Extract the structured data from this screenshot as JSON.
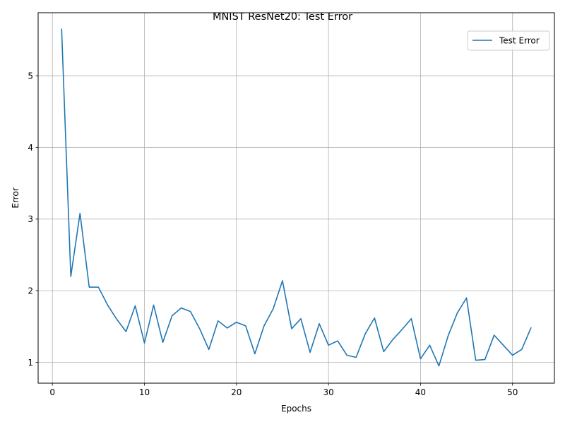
{
  "chart_data": {
    "type": "line",
    "title": "MNIST ResNet20: Test Error",
    "xlabel": "Epochs",
    "ylabel": "Error",
    "xlim": [
      -1.55,
      54.55
    ],
    "ylim": [
      0.71,
      5.88
    ],
    "xticks": [
      0,
      10,
      20,
      30,
      40,
      50
    ],
    "yticks": [
      1,
      2,
      3,
      4,
      5
    ],
    "grid": true,
    "legend_position": "top-right",
    "series": [
      {
        "name": "Test Error",
        "color": "#1f77b4",
        "x": [
          1,
          2,
          3,
          4,
          5,
          6,
          7,
          8,
          9,
          10,
          11,
          12,
          13,
          14,
          15,
          16,
          17,
          18,
          19,
          20,
          21,
          22,
          23,
          24,
          25,
          26,
          27,
          28,
          29,
          30,
          31,
          32,
          33,
          34,
          35,
          36,
          37,
          38,
          39,
          40,
          41,
          42,
          43,
          44,
          45,
          46,
          47,
          48,
          49,
          50,
          51,
          52
        ],
        "y": [
          5.65,
          2.2,
          3.08,
          2.05,
          2.05,
          1.8,
          1.6,
          1.43,
          1.79,
          1.27,
          1.8,
          1.28,
          1.65,
          1.76,
          1.71,
          1.47,
          1.18,
          1.58,
          1.48,
          1.56,
          1.51,
          1.12,
          1.51,
          1.75,
          2.14,
          1.47,
          1.61,
          1.14,
          1.54,
          1.24,
          1.3,
          1.1,
          1.07,
          1.4,
          1.62,
          1.15,
          1.32,
          1.46,
          1.61,
          1.05,
          1.24,
          0.95,
          1.37,
          1.69,
          1.9,
          1.03,
          1.04,
          1.38,
          1.24,
          1.1,
          1.18,
          1.48
        ]
      }
    ]
  }
}
